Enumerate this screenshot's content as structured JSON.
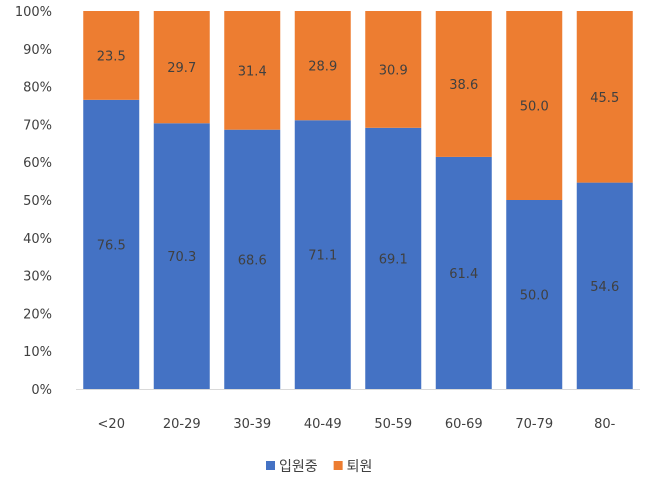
{
  "chart_data": {
    "type": "bar",
    "stacked": true,
    "percent": true,
    "categories": [
      "<20",
      "20-29",
      "30-39",
      "40-49",
      "50-59",
      "60-69",
      "70-79",
      "80-"
    ],
    "series": [
      {
        "name": "입원중",
        "color": "#4472C4",
        "values": [
          76.5,
          70.3,
          68.6,
          71.1,
          69.1,
          61.4,
          50.0,
          54.6
        ],
        "labels": [
          "76.5",
          "70.3",
          "68.6",
          "71.1",
          "69.1",
          "61.4",
          "50.0",
          "54.6"
        ]
      },
      {
        "name": "퇴원",
        "color": "#ED7D31",
        "values": [
          23.5,
          29.7,
          31.4,
          28.9,
          30.9,
          38.6,
          50.0,
          45.5
        ],
        "labels": [
          "23.5",
          "29.7",
          "31.4",
          "28.9",
          "30.9",
          "38.6",
          "50.0",
          "45.5"
        ]
      }
    ],
    "yticks": [
      "0%",
      "10%",
      "20%",
      "30%",
      "40%",
      "50%",
      "60%",
      "70%",
      "80%",
      "90%",
      "100%"
    ],
    "ylim": [
      0,
      100
    ],
    "grid": false,
    "legend": "bottom"
  }
}
